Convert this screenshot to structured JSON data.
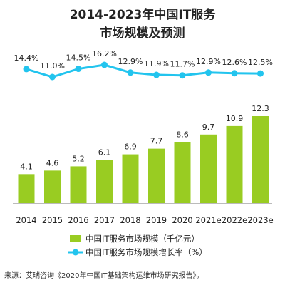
{
  "chart_data": {
    "type": "bar+line",
    "title": "2014-2023年中国IT服务",
    "subtitle": "市场规模及预测",
    "categories": [
      "2014",
      "2015",
      "2016",
      "2017",
      "2018",
      "2019",
      "2020",
      "2021e",
      "2022e",
      "2023e"
    ],
    "series": [
      {
        "name": "中国IT服务市场规模（千亿元）",
        "type": "bar",
        "values": [
          4.1,
          4.6,
          5.2,
          6.1,
          6.9,
          7.7,
          8.6,
          9.7,
          10.9,
          12.3
        ],
        "labels": [
          "4.1",
          "4.6",
          "5.2",
          "6.1",
          "6.9",
          "7.7",
          "8.6",
          "9.7",
          "10.9",
          "12.3"
        ],
        "color": "#99CC22"
      },
      {
        "name": "中国IT服务市场规模增长率（%）",
        "type": "line",
        "values": [
          14.4,
          11.0,
          14.5,
          16.2,
          12.9,
          11.9,
          11.7,
          12.9,
          12.6,
          12.5
        ],
        "labels": [
          "14.4%",
          "11.0%",
          "14.5%",
          "16.2%",
          "12.9%",
          "11.9%",
          "11.7%",
          "12.9%",
          "12.6%",
          "12.5%"
        ],
        "color": "#22C4EE"
      }
    ],
    "xlabel": "",
    "ylabel": "",
    "bar_ylim": [
      0,
      12.3
    ],
    "line_ylim": [
      11.0,
      16.2
    ],
    "grid": false,
    "legend_position": "bottom-center"
  },
  "source_text": "来源：艾瑞咨询《2020年中国IT基础架构运维市场研究报告》。"
}
